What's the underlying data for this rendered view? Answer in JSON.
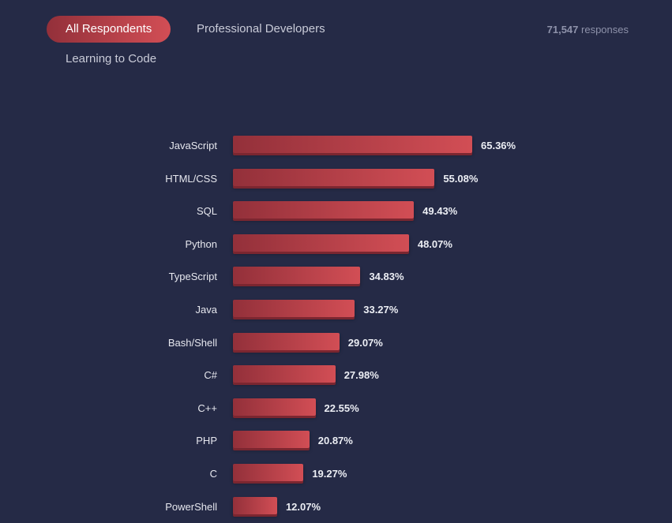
{
  "tabs": [
    {
      "label": "All Respondents",
      "active": true
    },
    {
      "label": "Professional Developers",
      "active": false
    },
    {
      "label": "Learning to Code",
      "active": false
    }
  ],
  "responses": {
    "count": "71,547",
    "label": "responses"
  },
  "colors": {
    "background": "#252a46",
    "bar_start": "#93303a",
    "bar_end": "#d24e55"
  },
  "chart_data": {
    "type": "bar",
    "orientation": "horizontal",
    "categories": [
      "JavaScript",
      "HTML/CSS",
      "SQL",
      "Python",
      "TypeScript",
      "Java",
      "Bash/Shell",
      "C#",
      "C++",
      "PHP",
      "C",
      "PowerShell"
    ],
    "values": [
      65.36,
      55.08,
      49.43,
      48.07,
      34.83,
      33.27,
      29.07,
      27.98,
      22.55,
      20.87,
      19.27,
      12.07
    ],
    "labels": [
      "65.36%",
      "55.08%",
      "49.43%",
      "48.07%",
      "34.83%",
      "33.27%",
      "29.07%",
      "27.98%",
      "22.55%",
      "20.87%",
      "19.27%",
      "12.07%"
    ],
    "unit": "%"
  }
}
